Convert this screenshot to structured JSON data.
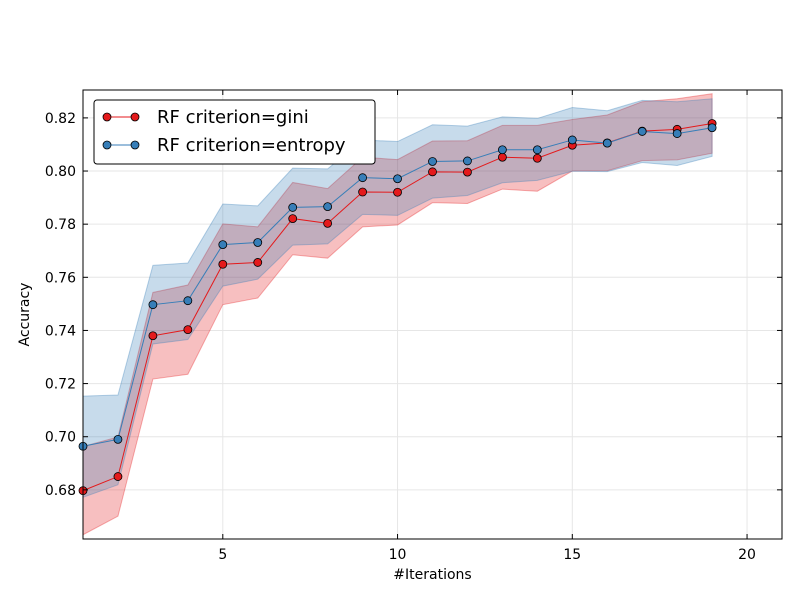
{
  "chart_data": {
    "type": "line",
    "title": "",
    "xlabel": "#Iterations",
    "ylabel": "Accuracy",
    "xlim": [
      1,
      21
    ],
    "ylim": [
      0.6615,
      0.8305
    ],
    "xticks": [
      5,
      10,
      15,
      20
    ],
    "yticks": [
      0.68,
      0.7,
      0.72,
      0.74,
      0.76,
      0.78,
      0.8,
      0.82
    ],
    "grid": true,
    "legend": {
      "placement": "top-left"
    },
    "series": [
      {
        "name": "RF criterion=gini",
        "color": "#e41a1c",
        "x": [
          1,
          2,
          3,
          4,
          5,
          6,
          7,
          8,
          9,
          10,
          11,
          12,
          13,
          14,
          15,
          16,
          17,
          18,
          19
        ],
        "y": [
          0.6797,
          0.685,
          0.738,
          0.7403,
          0.7649,
          0.7656,
          0.7821,
          0.7803,
          0.7921,
          0.792,
          0.7997,
          0.7996,
          0.8052,
          0.8048,
          0.8097,
          0.8106,
          0.815,
          0.8157,
          0.8179
        ],
        "lower": [
          0.6631,
          0.6701,
          0.7217,
          0.7235,
          0.7497,
          0.7522,
          0.7685,
          0.7672,
          0.779,
          0.7797,
          0.7881,
          0.7878,
          0.7932,
          0.7924,
          0.8,
          0.8001,
          0.8039,
          0.8042,
          0.8067
        ],
        "upper": [
          0.6963,
          0.6999,
          0.7543,
          0.7571,
          0.7801,
          0.779,
          0.7957,
          0.7934,
          0.8052,
          0.8043,
          0.8113,
          0.8114,
          0.8172,
          0.8172,
          0.8194,
          0.8211,
          0.8261,
          0.8272,
          0.8291
        ]
      },
      {
        "name": "RF criterion=entropy",
        "color": "#377eb8",
        "x": [
          1,
          2,
          3,
          4,
          5,
          6,
          7,
          8,
          9,
          10,
          11,
          12,
          13,
          14,
          15,
          16,
          17,
          18,
          19
        ],
        "y": [
          0.6964,
          0.699,
          0.7497,
          0.7512,
          0.7723,
          0.7731,
          0.7863,
          0.7866,
          0.7975,
          0.7971,
          0.8036,
          0.8038,
          0.808,
          0.808,
          0.8117,
          0.8105,
          0.8149,
          0.8141,
          0.8163
        ],
        "lower": [
          0.6772,
          0.6819,
          0.7349,
          0.7366,
          0.7567,
          0.7593,
          0.7721,
          0.7726,
          0.7837,
          0.7833,
          0.7898,
          0.7908,
          0.7956,
          0.7965,
          0.7999,
          0.7998,
          0.8032,
          0.8021,
          0.8055
        ],
        "upper": [
          0.7153,
          0.7157,
          0.7645,
          0.7654,
          0.7876,
          0.7869,
          0.8011,
          0.8008,
          0.8117,
          0.8111,
          0.8174,
          0.8169,
          0.8204,
          0.8198,
          0.8239,
          0.8227,
          0.8266,
          0.8261,
          0.8272
        ]
      }
    ]
  }
}
